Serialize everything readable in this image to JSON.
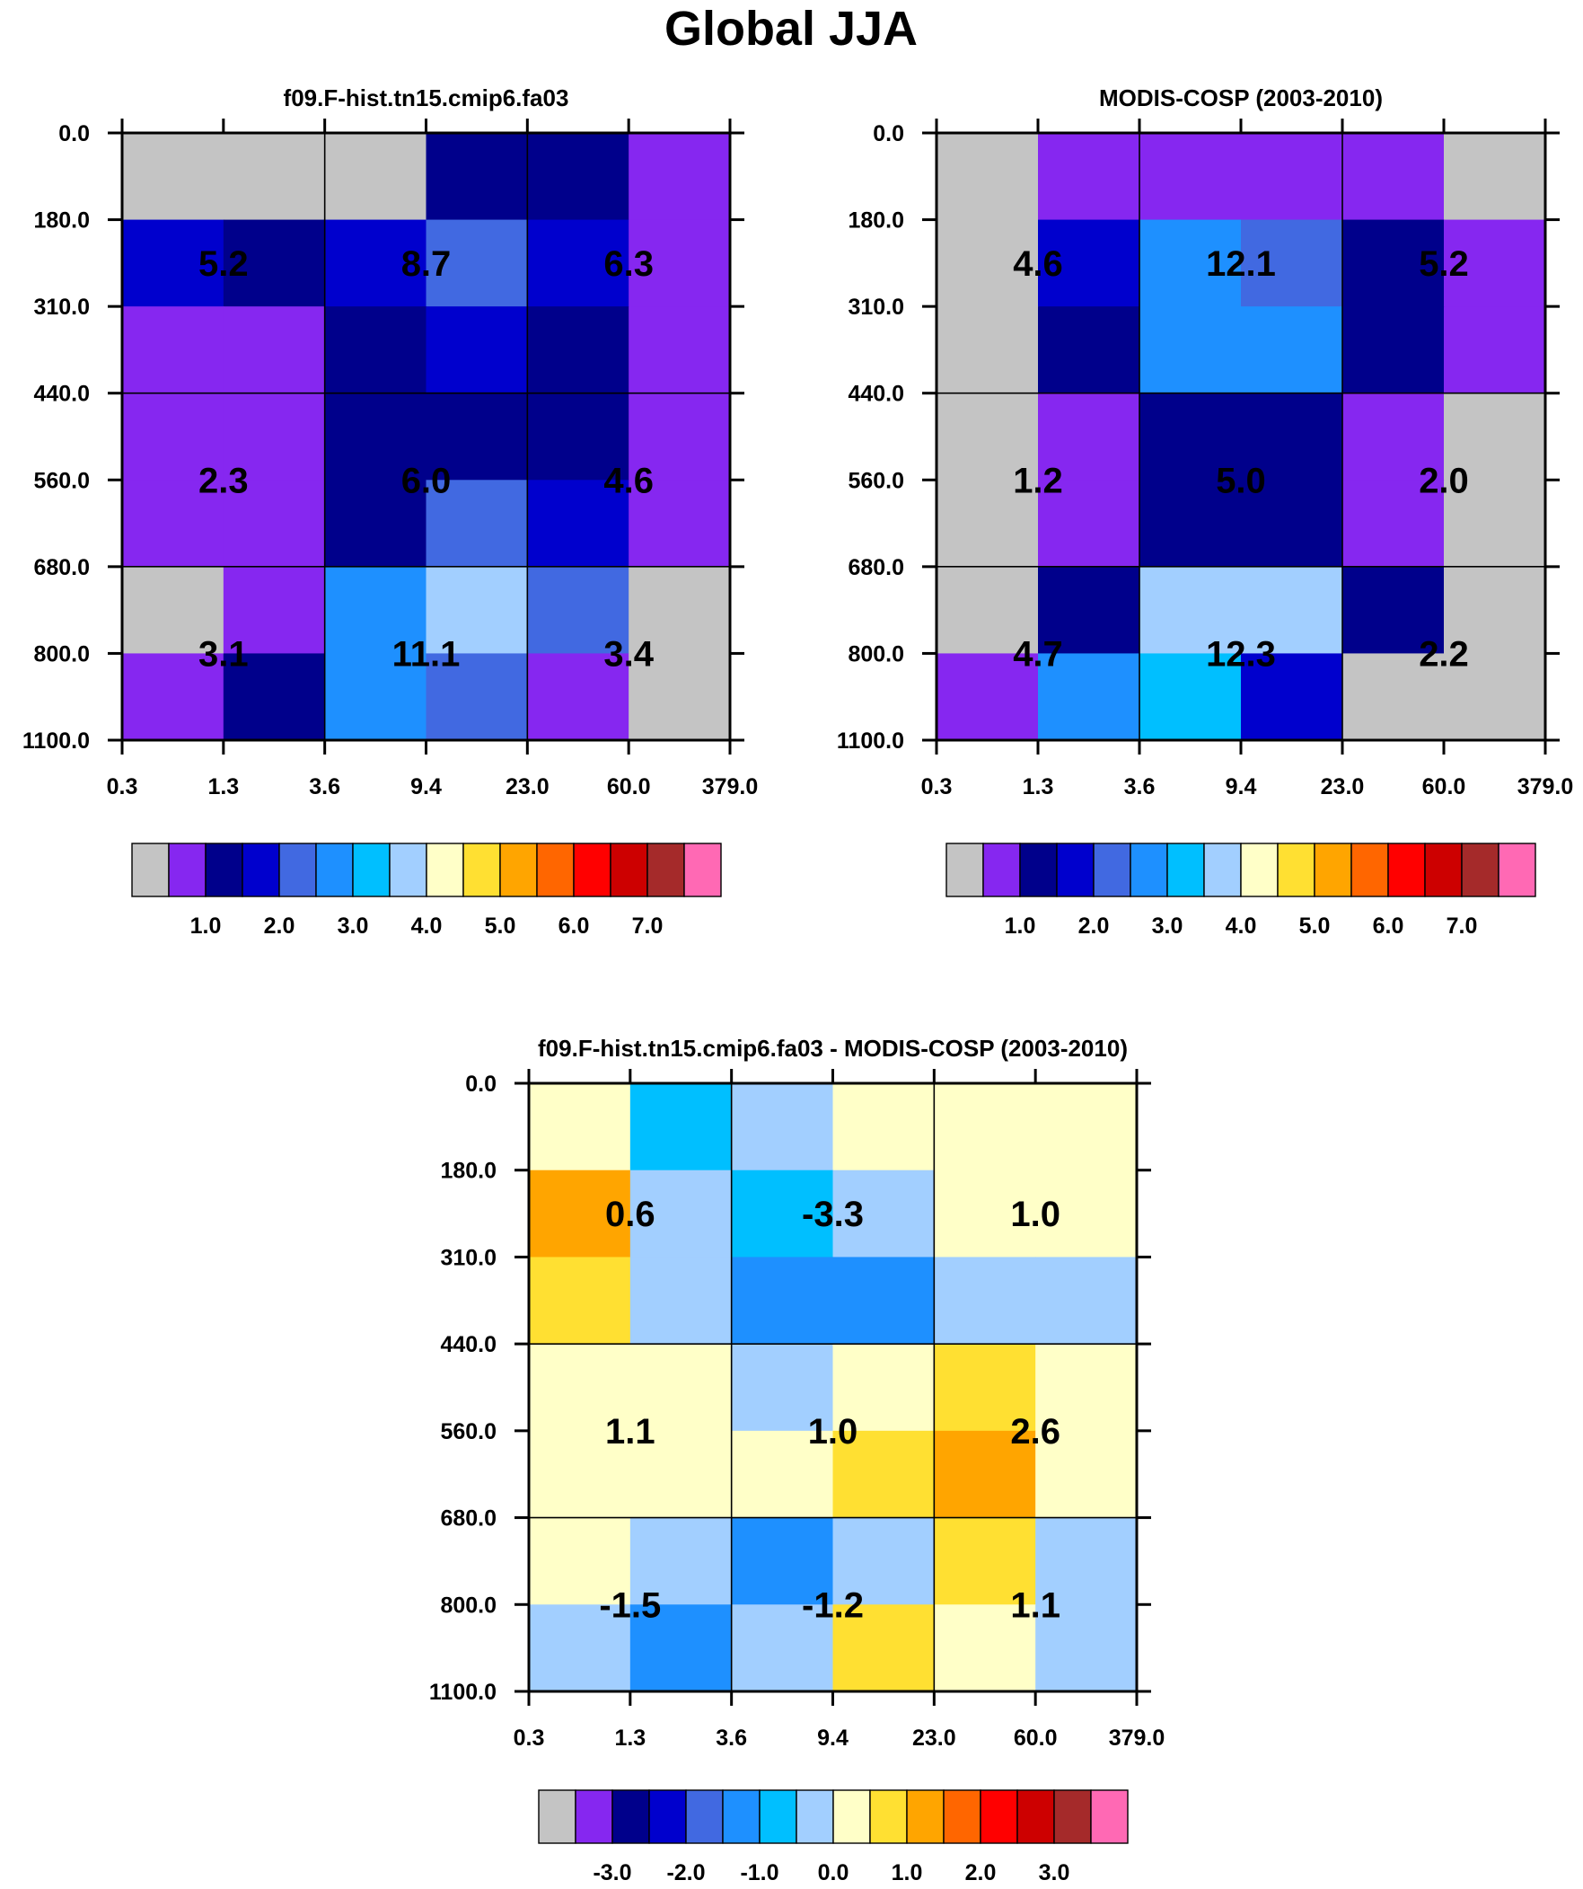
{
  "title": "Global JJA",
  "chart_data": [
    {
      "type": "heatmap",
      "title": "f09.F-hist.tn15.cmip6.fa03",
      "x_ticks": [
        "0.3",
        "1.3",
        "3.6",
        "9.4",
        "23.0",
        "60.0",
        "379.0"
      ],
      "y_ticks": [
        "0.0",
        "180.0",
        "310.0",
        "440.0",
        "560.0",
        "680.0",
        "800.0",
        "1100.0"
      ],
      "cell_colors": [
        [
          0,
          0,
          0,
          2,
          2,
          1
        ],
        [
          3,
          2,
          3,
          4,
          3,
          1
        ],
        [
          1,
          1,
          2,
          3,
          2,
          1
        ],
        [
          1,
          1,
          2,
          2,
          2,
          1
        ],
        [
          1,
          1,
          2,
          4,
          3,
          1
        ],
        [
          0,
          1,
          5,
          7,
          4,
          0
        ],
        [
          1,
          2,
          5,
          4,
          1,
          0
        ]
      ],
      "group_values": [
        [
          "5.2",
          "8.7",
          "6.3"
        ],
        [
          "2.3",
          "6.0",
          "4.6"
        ],
        [
          "3.1",
          "11.1",
          "3.4"
        ]
      ],
      "colorbar_labels": [
        "1.0",
        "2.0",
        "3.0",
        "4.0",
        "5.0",
        "6.0",
        "7.0"
      ]
    },
    {
      "type": "heatmap",
      "title": "MODIS-COSP (2003-2010)",
      "x_ticks": [
        "0.3",
        "1.3",
        "3.6",
        "9.4",
        "23.0",
        "60.0",
        "379.0"
      ],
      "y_ticks": [
        "0.0",
        "180.0",
        "310.0",
        "440.0",
        "560.0",
        "680.0",
        "800.0",
        "1100.0"
      ],
      "cell_colors": [
        [
          0,
          1,
          1,
          1,
          1,
          0
        ],
        [
          0,
          3,
          5,
          4,
          2,
          1
        ],
        [
          0,
          2,
          5,
          5,
          2,
          1
        ],
        [
          0,
          1,
          2,
          2,
          1,
          0
        ],
        [
          0,
          1,
          2,
          2,
          1,
          0
        ],
        [
          0,
          2,
          7,
          7,
          2,
          0
        ],
        [
          1,
          5,
          6,
          3,
          0,
          0
        ]
      ],
      "group_values": [
        [
          "4.6",
          "12.1",
          "5.2"
        ],
        [
          "1.2",
          "5.0",
          "2.0"
        ],
        [
          "4.7",
          "12.3",
          "2.2"
        ]
      ],
      "colorbar_labels": [
        "1.0",
        "2.0",
        "3.0",
        "4.0",
        "5.0",
        "6.0",
        "7.0"
      ]
    },
    {
      "type": "heatmap",
      "title": "f09.F-hist.tn15.cmip6.fa03 - MODIS-COSP (2003-2010)",
      "x_ticks": [
        "0.3",
        "1.3",
        "3.6",
        "9.4",
        "23.0",
        "60.0",
        "379.0"
      ],
      "y_ticks": [
        "0.0",
        "180.0",
        "310.0",
        "440.0",
        "560.0",
        "680.0",
        "800.0",
        "1100.0"
      ],
      "cell_colors": [
        [
          8,
          6,
          7,
          8,
          8,
          8
        ],
        [
          10,
          7,
          6,
          7,
          8,
          8
        ],
        [
          9,
          7,
          5,
          5,
          7,
          7
        ],
        [
          8,
          8,
          7,
          8,
          9,
          8
        ],
        [
          8,
          8,
          8,
          9,
          10,
          8
        ],
        [
          8,
          7,
          5,
          7,
          9,
          7
        ],
        [
          7,
          5,
          7,
          9,
          8,
          7
        ]
      ],
      "group_values": [
        [
          "0.6",
          "-3.3",
          "1.0"
        ],
        [
          "1.1",
          "1.0",
          "2.6"
        ],
        [
          "-1.5",
          "-1.2",
          "1.1"
        ]
      ],
      "colorbar_labels": [
        "-3.0",
        "-2.0",
        "-1.0",
        "0.0",
        "1.0",
        "2.0",
        "3.0"
      ]
    }
  ],
  "palette": [
    "#c4c4c4",
    "#8627f0",
    "#00008b",
    "#0000cd",
    "#4169e1",
    "#1e90ff",
    "#00bfff",
    "#a2cfff",
    "#ffffc8",
    "#ffe032",
    "#ffa500",
    "#ff6600",
    "#ff0000",
    "#cd0000",
    "#a52a2a",
    "#ff69b4"
  ]
}
